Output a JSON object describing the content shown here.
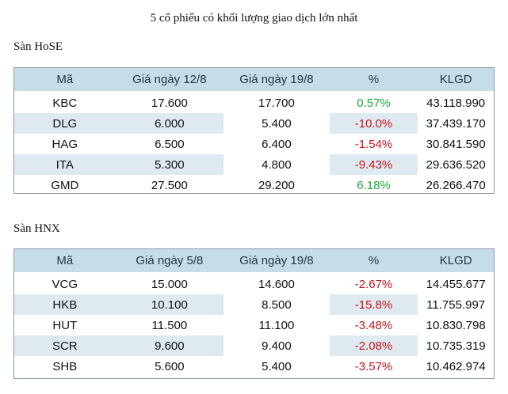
{
  "title": "5 cổ phiếu có khối lượng giao dịch lớn nhất",
  "hose": {
    "label": "Sàn HoSE",
    "headers": [
      "Mã",
      "Giá ngày 12/8",
      "Giá ngày 19/8",
      "%",
      "KLGD"
    ],
    "rows": [
      {
        "code": "KBC",
        "price1": "17.600",
        "price2": "17.700",
        "pct": "0.57%",
        "vol": "43.118.990",
        "dir": "up"
      },
      {
        "code": "DLG",
        "price1": "6.000",
        "price2": "5.400",
        "pct": "-10.0%",
        "vol": "37.439.170",
        "dir": "down"
      },
      {
        "code": "HAG",
        "price1": "6.500",
        "price2": "6.400",
        "pct": "-1.54%",
        "vol": "30.841.590",
        "dir": "down"
      },
      {
        "code": "ITA",
        "price1": "5.300",
        "price2": "4.800",
        "pct": "-9.43%",
        "vol": "29.636.520",
        "dir": "down"
      },
      {
        "code": "GMD",
        "price1": "27.500",
        "price2": "29.200",
        "pct": "6.18%",
        "vol": "26.266.470",
        "dir": "up"
      }
    ]
  },
  "hnx": {
    "label": "Sàn HNX",
    "headers": [
      "Mã",
      "Giá ngày 5/8",
      "Giá ngày 19/8",
      "%",
      "KLGD"
    ],
    "rows": [
      {
        "code": "VCG",
        "price1": "15.000",
        "price2": "14.600",
        "pct": "-2.67%",
        "vol": "14.455.677",
        "dir": "down"
      },
      {
        "code": "HKB",
        "price1": "10.100",
        "price2": "8.500",
        "pct": "-15.8%",
        "vol": "11.755.997",
        "dir": "down"
      },
      {
        "code": "HUT",
        "price1": "11.500",
        "price2": "11.100",
        "pct": "-3.48%",
        "vol": "10.830.798",
        "dir": "down"
      },
      {
        "code": "SCR",
        "price1": "9.600",
        "price2": "9.400",
        "pct": "-2.08%",
        "vol": "10.735.319",
        "dir": "down"
      },
      {
        "code": "SHB",
        "price1": "5.600",
        "price2": "5.400",
        "pct": "-3.57%",
        "vol": "10.462.974",
        "dir": "down"
      }
    ]
  },
  "colors": {
    "up": "#21a83a",
    "down": "#c4161c",
    "header_bg": "#c6dde8",
    "shade_bg": "#dfe9f0"
  }
}
